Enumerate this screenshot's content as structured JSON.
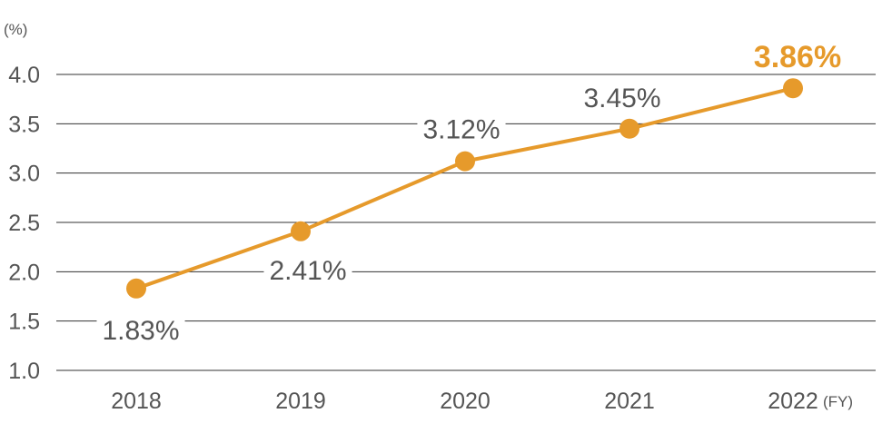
{
  "chart_data": {
    "type": "line",
    "yunit": "(%)",
    "xunit": "(FY)",
    "categories": [
      "2018",
      "2019",
      "2020",
      "2021",
      "2022"
    ],
    "values": [
      1.83,
      2.41,
      3.12,
      3.45,
      3.86
    ],
    "data_labels": [
      "1.83%",
      "2.41%",
      "3.12%",
      "3.45%",
      "3.86%"
    ],
    "highlight_index": 4,
    "yticks": [
      "1.0",
      "1.5",
      "2.0",
      "2.5",
      "3.0",
      "3.5",
      "4.0"
    ],
    "ylim": [
      1.0,
      4.0
    ],
    "grid": true,
    "colors": {
      "line": "#E69A2B",
      "grid": "#333333",
      "text": "#555555",
      "highlight": "#E69A2B"
    }
  }
}
